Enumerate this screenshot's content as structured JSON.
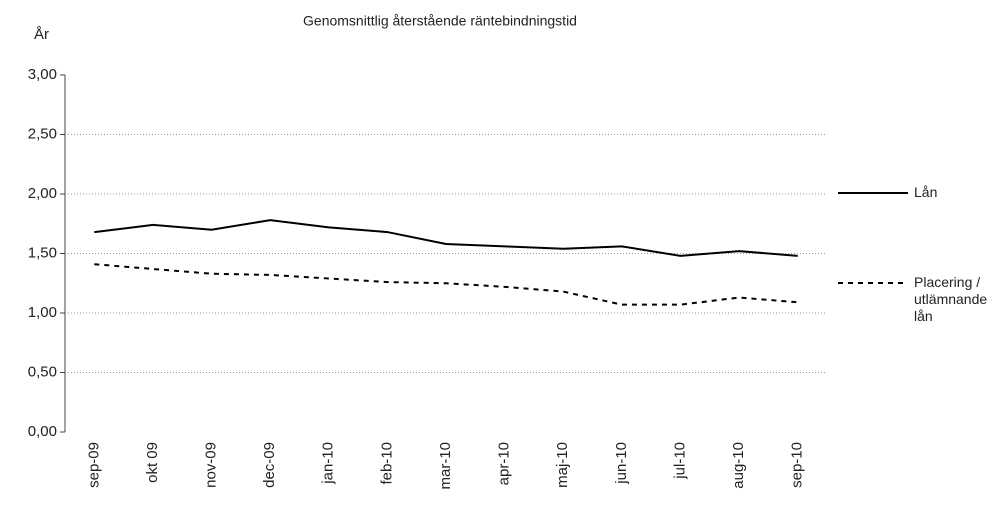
{
  "chart_data": {
    "type": "line",
    "title": "Genomsnittlig återstående räntebindningstid",
    "y_label": "År",
    "categories": [
      "sep-09",
      "okt 09",
      "nov-09",
      "dec-09",
      "jan-10",
      "feb-10",
      "mar-10",
      "apr-10",
      "maj-10",
      "jun-10",
      "jul-10",
      "aug-10",
      "sep-10"
    ],
    "series": [
      {
        "name": "Lån",
        "color": "#000000",
        "dash": "solid",
        "values": [
          1.68,
          1.74,
          1.7,
          1.78,
          1.72,
          1.68,
          1.58,
          1.56,
          1.54,
          1.56,
          1.48,
          1.52,
          1.48
        ]
      },
      {
        "name": "Placering / utlämnande lån",
        "color": "#000000",
        "dash": "dashed",
        "values": [
          1.41,
          1.37,
          1.33,
          1.32,
          1.29,
          1.26,
          1.25,
          1.22,
          1.18,
          1.07,
          1.07,
          1.13,
          1.09
        ]
      }
    ],
    "ylim": [
      0,
      3
    ],
    "yticks": [
      {
        "value": 0,
        "label": "0,00"
      },
      {
        "value": 0.5,
        "label": "0,50"
      },
      {
        "value": 1,
        "label": "1,00"
      },
      {
        "value": 1.5,
        "label": "1,50"
      },
      {
        "value": 2,
        "label": "2,00"
      },
      {
        "value": 2.5,
        "label": "2,50"
      },
      {
        "value": 3,
        "label": "3,00"
      }
    ],
    "grid": true,
    "legend": "right"
  }
}
